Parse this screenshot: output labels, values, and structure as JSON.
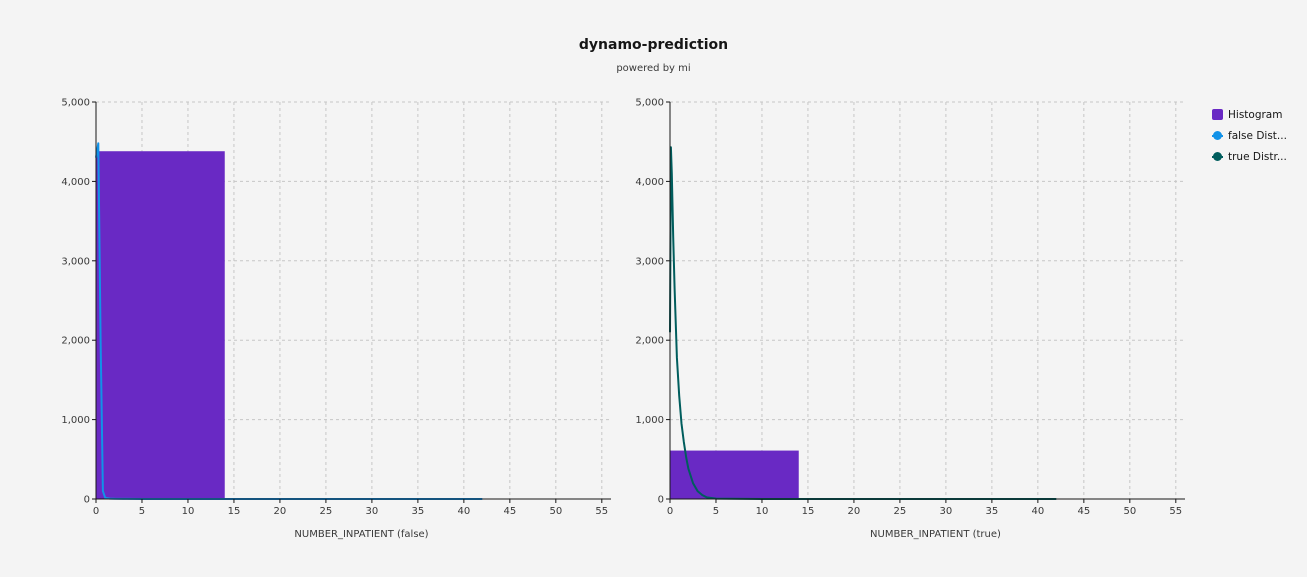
{
  "header": {
    "title": "dynamo-prediction",
    "subtitle": "powered by mi"
  },
  "legend": {
    "items": [
      {
        "label": "Histogram",
        "color": "#6929c4",
        "kind": "box"
      },
      {
        "label": "false Dist...",
        "color": "#1192e8",
        "kind": "line"
      },
      {
        "label": "true Distr...",
        "color": "#005d5d",
        "kind": "line"
      }
    ]
  },
  "chart_data": [
    {
      "type": "bar",
      "panel": "left",
      "title": "",
      "xlabel": "NUMBER_INPATIENT (false)",
      "ylabel": "",
      "xlim": [
        0,
        56
      ],
      "ylim": [
        0,
        5000
      ],
      "xticks": [
        0,
        5,
        10,
        15,
        20,
        25,
        30,
        35,
        40,
        45,
        50,
        55
      ],
      "yticks": [
        0,
        1000,
        2000,
        3000,
        4000,
        5000
      ],
      "ytick_labels": [
        "0",
        "1,000",
        "2,000",
        "3,000",
        "4,000",
        "5,000"
      ],
      "grid": true,
      "histogram": [
        {
          "x0": 0,
          "x1": 14,
          "value": 4380
        }
      ],
      "line": {
        "name": "false Dist...",
        "color": "#1192e8",
        "x": [
          0,
          0.25,
          0.5,
          0.75,
          1,
          1.5,
          2,
          3,
          5,
          10,
          20,
          30,
          42
        ],
        "y": [
          4300,
          4480,
          2000,
          100,
          15,
          5,
          2,
          1,
          0,
          0,
          0,
          0,
          0
        ]
      }
    },
    {
      "type": "bar",
      "panel": "right",
      "title": "",
      "xlabel": "NUMBER_INPATIENT (true)",
      "ylabel": "",
      "xlim": [
        0,
        56
      ],
      "ylim": [
        0,
        5000
      ],
      "xticks": [
        0,
        5,
        10,
        15,
        20,
        25,
        30,
        35,
        40,
        45,
        50,
        55
      ],
      "yticks": [
        0,
        1000,
        2000,
        3000,
        4000,
        5000
      ],
      "ytick_labels": [
        "0",
        "1,000",
        "2,000",
        "3,000",
        "4,000",
        "5,000"
      ],
      "grid": true,
      "histogram": [
        {
          "x0": 0,
          "x1": 14,
          "value": 610
        }
      ],
      "line": {
        "name": "true Distr...",
        "color": "#005d5d",
        "x": [
          0,
          0.1,
          0.2,
          0.35,
          0.5,
          0.75,
          1,
          1.25,
          1.5,
          1.75,
          2,
          2.5,
          3,
          3.5,
          4,
          5,
          10,
          20,
          30,
          42
        ],
        "y": [
          2100,
          4430,
          4100,
          3300,
          2650,
          1780,
          1300,
          950,
          720,
          530,
          380,
          200,
          100,
          50,
          20,
          5,
          0,
          0,
          0,
          0
        ]
      }
    }
  ]
}
